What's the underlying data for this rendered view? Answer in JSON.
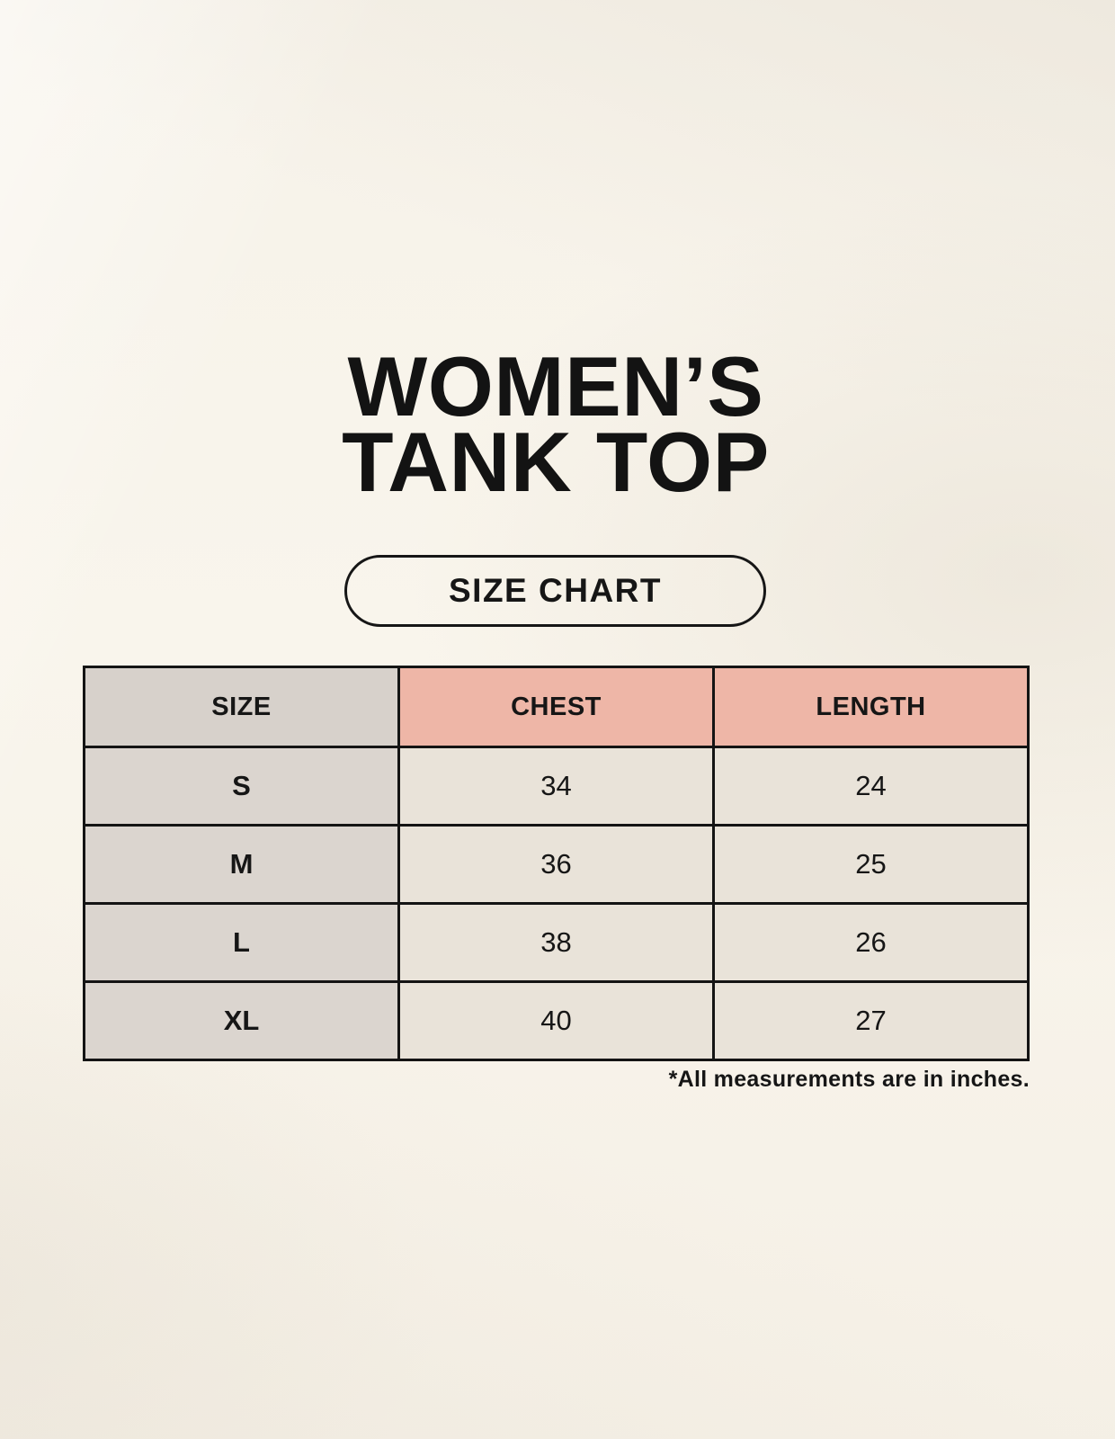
{
  "colors": {
    "background": "#f7f3ea",
    "border": "#141414",
    "size_column_bg": "#d8d2cc",
    "header_accent_bg": "#eeb6a7",
    "data_cell_bg": "#e9e3d9",
    "text": "#161616"
  },
  "title": {
    "line1": "WOMEN’S",
    "line2": "TANK TOP"
  },
  "button": {
    "label": "SIZE CHART"
  },
  "table": {
    "headers": [
      "SIZE",
      "CHEST",
      "LENGTH"
    ],
    "rows": [
      {
        "size": "S",
        "chest": "34",
        "length": "24"
      },
      {
        "size": "M",
        "chest": "36",
        "length": "25"
      },
      {
        "size": "L",
        "chest": "38",
        "length": "26"
      },
      {
        "size": "XL",
        "chest": "40",
        "length": "27"
      }
    ]
  },
  "footnote": "*All measurements are in inches.",
  "chart_data": {
    "type": "table",
    "title": "WOMEN’S TANK TOP — SIZE CHART",
    "columns": [
      "SIZE",
      "CHEST",
      "LENGTH"
    ],
    "units": "inches",
    "rows": [
      [
        "S",
        34,
        24
      ],
      [
        "M",
        36,
        25
      ],
      [
        "L",
        38,
        26
      ],
      [
        "XL",
        40,
        27
      ]
    ],
    "note": "*All measurements are in inches."
  }
}
